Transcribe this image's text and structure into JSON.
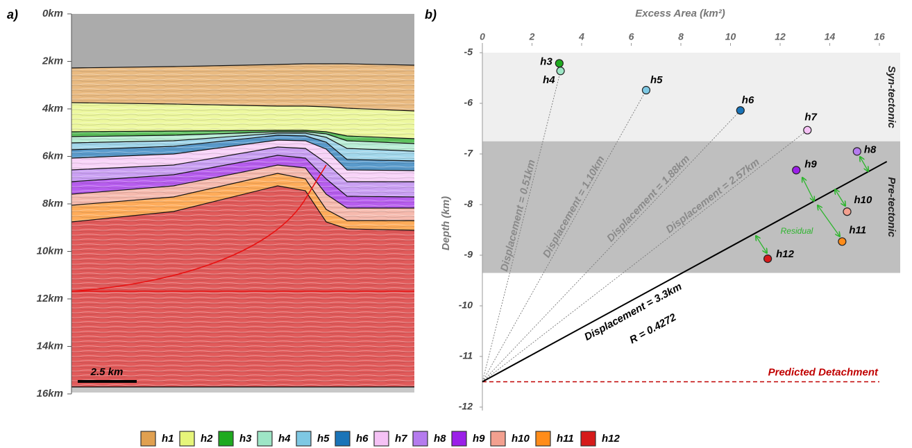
{
  "chart_data": [
    {
      "type": "section",
      "panel": "a)",
      "ylim": [
        0,
        16
      ],
      "yticks": [
        {
          "value": 0,
          "label": "0km"
        },
        {
          "value": 2,
          "label": "2km"
        },
        {
          "value": 4,
          "label": "4km"
        },
        {
          "value": 6,
          "label": "6km"
        },
        {
          "value": 8,
          "label": "8km"
        },
        {
          "value": 10,
          "label": "10km"
        },
        {
          "value": 12,
          "label": "12km"
        },
        {
          "value": 14,
          "label": "14km"
        },
        {
          "value": 16,
          "label": "16km"
        }
      ],
      "scale_bar": "2.5 km"
    },
    {
      "type": "scatter",
      "panel": "b)",
      "xlabel": "Excess Area (km²)",
      "ylabel": "Depth (km)",
      "xlim": [
        0,
        16
      ],
      "xticks": [
        0,
        2,
        4,
        6,
        8,
        10,
        12,
        14,
        16
      ],
      "ylim": [
        -12,
        -5
      ],
      "yticks": [
        -5,
        -6,
        -7,
        -8,
        -9,
        -10,
        -11,
        -12
      ],
      "labels": [
        "h3",
        "h4",
        "h5",
        "h6",
        "h7",
        "h8",
        "h9",
        "h10",
        "h11",
        "h12"
      ],
      "x": [
        3.1,
        3.15,
        6.6,
        10.4,
        13.1,
        15.1,
        12.65,
        14.7,
        14.5,
        11.5
      ],
      "values": [
        -5.21,
        -5.36,
        -5.74,
        -6.14,
        -6.53,
        -6.95,
        -7.32,
        -8.14,
        -8.73,
        -9.07
      ],
      "bands": [
        {
          "ylim": [
            -6.75,
            -5
          ],
          "label": "Syn-tectonic",
          "color": "#efefef"
        },
        {
          "ylim": [
            -9.35,
            -6.75
          ],
          "label": "Pre-tectonic",
          "color": "#bfbfbf"
        }
      ],
      "lines": [
        {
          "x": [
            0,
            3.15
          ],
          "y": [
            -11.5,
            -5.36
          ],
          "label": "Displacement = 0.51km",
          "style": "dotted"
        },
        {
          "x": [
            0,
            6.6
          ],
          "y": [
            -11.5,
            -5.74
          ],
          "label": "Displacement = 1.10km",
          "style": "dotted"
        },
        {
          "x": [
            0,
            10.4
          ],
          "y": [
            -11.5,
            -6.14
          ],
          "label": "Displacement = 1.88km",
          "style": "dotted"
        },
        {
          "x": [
            0,
            13.1
          ],
          "y": [
            -11.5,
            -6.53
          ],
          "label": "Displacement = 2.57km",
          "style": "dotted"
        },
        {
          "x": [
            0,
            16.3
          ],
          "y": [
            -11.5,
            -7.15
          ],
          "label": "Displacement = 3.3km",
          "note": "R = 0.4272",
          "style": "solid"
        }
      ],
      "detachment": {
        "value": -11.5,
        "label": "Predicted Detachment",
        "color": "#c00000"
      },
      "annotation": "Residual"
    }
  ],
  "legend": [
    {
      "name": "h1",
      "color": "#e0a050"
    },
    {
      "name": "h2",
      "color": "#e6f57a"
    },
    {
      "name": "h3",
      "color": "#1faa1f"
    },
    {
      "name": "h4",
      "color": "#9ee6c6"
    },
    {
      "name": "h5",
      "color": "#7ec8e3"
    },
    {
      "name": "h6",
      "color": "#1a74b8"
    },
    {
      "name": "h7",
      "color": "#f5c2f5"
    },
    {
      "name": "h8",
      "color": "#b57bee"
    },
    {
      "name": "h9",
      "color": "#9b1fe8"
    },
    {
      "name": "h10",
      "color": "#f3a08f"
    },
    {
      "name": "h11",
      "color": "#ff8c1a"
    },
    {
      "name": "h12",
      "color": "#d61a1a"
    }
  ]
}
